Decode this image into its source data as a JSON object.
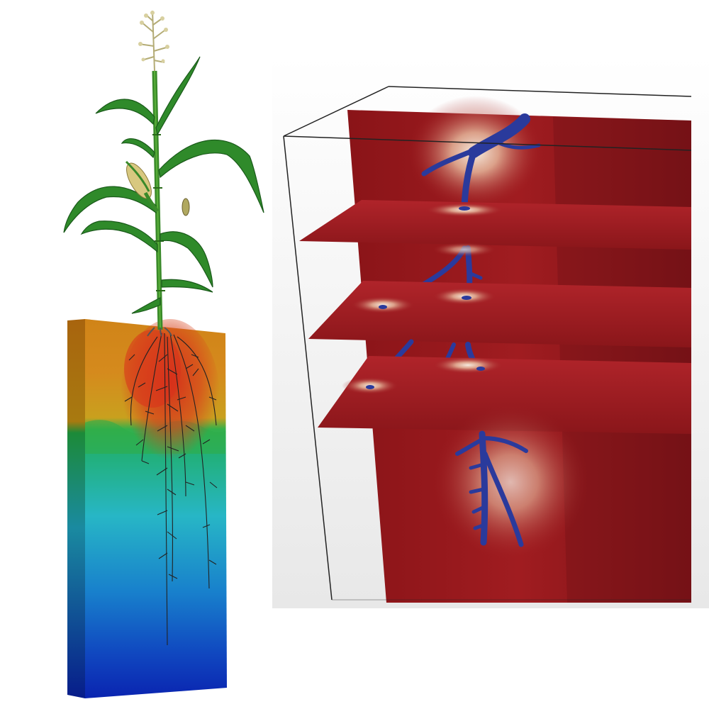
{
  "colors": {
    "background": "#ffffff",
    "soil_dry": "#d4861a",
    "soil_wet_top": "#1bb35a",
    "soil_mid": "#2bb8c8",
    "soil_deep": "#0a2db8",
    "depletion_zone": "#d8321c",
    "leaf": "#2f8a2a",
    "leaf_dark": "#1a5a1a",
    "stem": "#3a8a2a",
    "tassel": "#c8c08a",
    "cob": "#d8c880",
    "root_dark": "#2a2a2a",
    "slice_red": "#9a1a1e",
    "slice_dark": "#6e1216",
    "slice_glow": "#f2e6d6",
    "root_blue": "#2a3a9c",
    "panel_bg": "#f4f4f4",
    "box_edge": "#222222"
  },
  "scenes": {
    "left": {
      "name": "maize-plant-soil-column"
    },
    "right": {
      "name": "root-zoom-slices",
      "slice_count": 3
    }
  }
}
